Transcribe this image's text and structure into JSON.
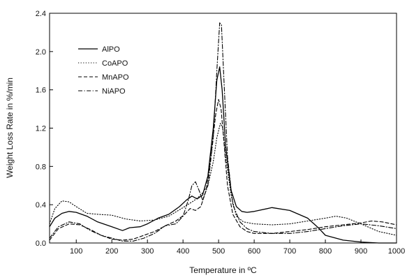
{
  "chart_data": {
    "type": "line",
    "title": "",
    "xlabel": "Temperature in ºC",
    "ylabel": "Weight Loss Rate in %/min",
    "xlim": [
      25,
      1000
    ],
    "ylim": [
      0,
      2.4
    ],
    "x_ticks": [
      100,
      200,
      300,
      400,
      500,
      600,
      700,
      800,
      900,
      1000
    ],
    "y_ticks": [
      0.0,
      0.4,
      0.8,
      1.2,
      1.6,
      2.0,
      2.4
    ],
    "x_tick_labels": [
      "100",
      "200",
      "300",
      "400",
      "500",
      "600",
      "700",
      "800",
      "900",
      "1000"
    ],
    "y_tick_labels": [
      "0.0",
      "0.4",
      "0.8",
      "1.2",
      "1.6",
      "2.0",
      "2.4"
    ],
    "grid": false,
    "legend_position": "top-left",
    "series": [
      {
        "name": "AlPO",
        "style": "solid",
        "color": "#000000",
        "x": [
          25,
          40,
          60,
          80,
          100,
          130,
          160,
          200,
          230,
          250,
          280,
          300,
          330,
          360,
          390,
          410,
          425,
          440,
          455,
          470,
          485,
          495,
          503,
          510,
          520,
          535,
          550,
          565,
          580,
          600,
          650,
          700,
          750,
          780,
          800,
          850,
          900,
          950,
          1000
        ],
        "y": [
          0.17,
          0.26,
          0.31,
          0.33,
          0.32,
          0.28,
          0.22,
          0.17,
          0.13,
          0.16,
          0.17,
          0.2,
          0.26,
          0.3,
          0.38,
          0.45,
          0.49,
          0.46,
          0.5,
          0.7,
          1.2,
          1.7,
          1.84,
          1.6,
          1.0,
          0.55,
          0.38,
          0.33,
          0.32,
          0.33,
          0.37,
          0.34,
          0.26,
          0.16,
          0.08,
          0.03,
          0.01,
          0.0,
          0.0
        ]
      },
      {
        "name": "CoAPO",
        "style": "dotted",
        "color": "#000000",
        "x": [
          25,
          40,
          60,
          80,
          100,
          130,
          160,
          200,
          240,
          280,
          320,
          360,
          400,
          430,
          450,
          470,
          485,
          495,
          505,
          512,
          520,
          535,
          550,
          570,
          600,
          650,
          700,
          750,
          800,
          830,
          860,
          900,
          950,
          1000
        ],
        "y": [
          0.2,
          0.36,
          0.44,
          0.43,
          0.38,
          0.31,
          0.3,
          0.29,
          0.25,
          0.23,
          0.24,
          0.28,
          0.37,
          0.44,
          0.5,
          0.6,
          0.85,
          1.1,
          1.25,
          1.2,
          0.9,
          0.5,
          0.28,
          0.22,
          0.2,
          0.19,
          0.2,
          0.23,
          0.26,
          0.28,
          0.26,
          0.2,
          0.12,
          0.08
        ]
      },
      {
        "name": "MnAPO",
        "style": "dashed",
        "color": "#000000",
        "x": [
          25,
          50,
          80,
          110,
          140,
          170,
          200,
          230,
          260,
          290,
          320,
          350,
          380,
          405,
          420,
          435,
          450,
          465,
          480,
          492,
          500,
          507,
          515,
          525,
          540,
          560,
          580,
          600,
          650,
          700,
          750,
          800,
          850,
          900,
          930,
          960,
          1000
        ],
        "y": [
          0.03,
          0.15,
          0.2,
          0.19,
          0.14,
          0.08,
          0.04,
          0.03,
          0.04,
          0.08,
          0.12,
          0.18,
          0.23,
          0.3,
          0.36,
          0.34,
          0.38,
          0.55,
          0.95,
          1.35,
          1.5,
          1.4,
          1.05,
          0.6,
          0.3,
          0.17,
          0.12,
          0.1,
          0.1,
          0.12,
          0.14,
          0.17,
          0.19,
          0.21,
          0.23,
          0.22,
          0.19
        ]
      },
      {
        "name": "NiAPO",
        "style": "dashdot",
        "color": "#000000",
        "x": [
          25,
          50,
          80,
          110,
          140,
          170,
          200,
          230,
          260,
          290,
          320,
          350,
          380,
          400,
          415,
          425,
          435,
          445,
          455,
          470,
          485,
          495,
          503,
          508,
          515,
          525,
          540,
          560,
          580,
          600,
          650,
          700,
          750,
          800,
          850,
          900,
          950,
          1000
        ],
        "y": [
          0.05,
          0.17,
          0.22,
          0.2,
          0.13,
          0.08,
          0.05,
          0.02,
          0.02,
          0.05,
          0.1,
          0.18,
          0.2,
          0.28,
          0.45,
          0.6,
          0.64,
          0.55,
          0.45,
          0.6,
          1.1,
          1.8,
          2.3,
          2.28,
          1.7,
          0.9,
          0.4,
          0.22,
          0.15,
          0.12,
          0.1,
          0.1,
          0.12,
          0.15,
          0.18,
          0.2,
          0.18,
          0.15
        ]
      }
    ]
  }
}
